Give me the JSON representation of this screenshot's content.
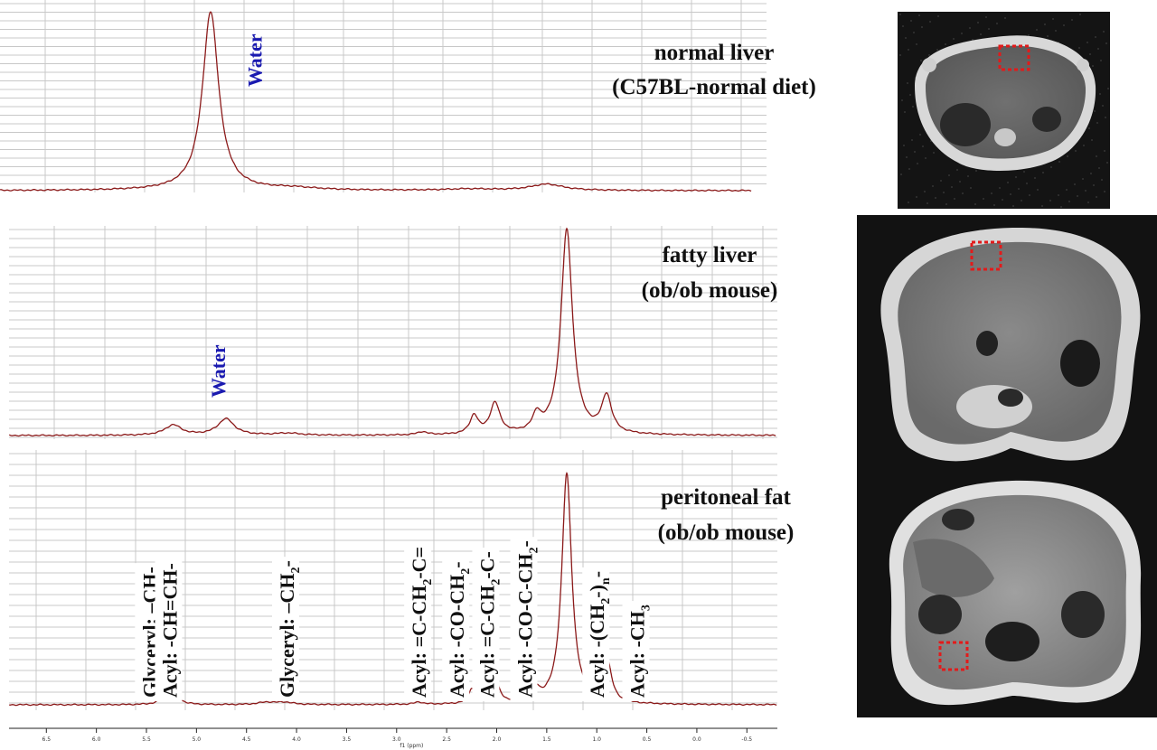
{
  "colors": {
    "trace": "#8b1a1a",
    "water_label": "#1a1ab0",
    "roi_box": "#e31a1a",
    "grid": "#c8c8c8"
  },
  "chart_data": [
    {
      "type": "line",
      "title_lines": [
        "normal liver",
        "(C57BL-normal diet)"
      ],
      "xrange": [
        8.5,
        -0.8
      ],
      "x_reversed": true,
      "grid": true,
      "peaks": [
        {
          "ppm": 4.75,
          "height": 1.0,
          "width": 0.1
        },
        {
          "ppm": 3.9,
          "height": 0.012,
          "width": 0.3
        },
        {
          "ppm": 2.1,
          "height": 0.008,
          "width": 0.3
        },
        {
          "ppm": 1.3,
          "height": 0.035,
          "width": 0.2
        }
      ],
      "annotations": [
        {
          "text": "Water",
          "ppm": 4.3,
          "color": "water"
        }
      ]
    },
    {
      "type": "line",
      "title_lines": [
        "fatty liver",
        "(ob/ob mouse)"
      ],
      "xrange": [
        8.5,
        -0.8
      ],
      "x_reversed": true,
      "grid": true,
      "peaks": [
        {
          "ppm": 5.25,
          "height": 0.05,
          "width": 0.1
        },
        {
          "ppm": 4.72,
          "height": 0.08,
          "width": 0.1
        },
        {
          "ppm": 4.1,
          "height": 0.01,
          "width": 0.15
        },
        {
          "ppm": 2.75,
          "height": 0.015,
          "width": 0.06
        },
        {
          "ppm": 2.23,
          "height": 0.09,
          "width": 0.05
        },
        {
          "ppm": 2.02,
          "height": 0.15,
          "width": 0.06
        },
        {
          "ppm": 1.6,
          "height": 0.08,
          "width": 0.05
        },
        {
          "ppm": 1.3,
          "height": 1.0,
          "width": 0.07
        },
        {
          "ppm": 0.9,
          "height": 0.18,
          "width": 0.06
        }
      ],
      "annotations": [
        {
          "text": "Water",
          "ppm": 4.8,
          "color": "water"
        }
      ]
    },
    {
      "type": "line",
      "title_lines": [
        "peritoneal fat",
        "(ob/ob mouse)"
      ],
      "xrange": [
        8.5,
        -0.8
      ],
      "x_reversed": true,
      "grid": true,
      "x_ticks": [
        "6.5",
        "6.0",
        "5.5",
        "5.0",
        "4.5",
        "4.0",
        "3.5",
        "3.0",
        "2.5",
        "2.0",
        "1.5",
        "1.0",
        "0.5",
        "0.0",
        "-0.5"
      ],
      "x_tick_values": [
        6.5,
        6.0,
        5.5,
        5.0,
        4.5,
        4.0,
        3.5,
        3.0,
        2.5,
        2.0,
        1.5,
        1.0,
        0.5,
        0.0,
        -0.5
      ],
      "xlabel": "f1 (ppm)",
      "peaks": [
        {
          "ppm": 5.3,
          "height": 0.05,
          "width": 0.05
        },
        {
          "ppm": 5.22,
          "height": 0.05,
          "width": 0.05
        },
        {
          "ppm": 4.3,
          "height": 0.01,
          "width": 0.1
        },
        {
          "ppm": 4.12,
          "height": 0.01,
          "width": 0.1
        },
        {
          "ppm": 2.78,
          "height": 0.01,
          "width": 0.05
        },
        {
          "ppm": 2.25,
          "height": 0.06,
          "width": 0.04
        },
        {
          "ppm": 2.03,
          "height": 0.14,
          "width": 0.05
        },
        {
          "ppm": 1.6,
          "height": 0.05,
          "width": 0.04
        },
        {
          "ppm": 1.3,
          "height": 1.0,
          "width": 0.06
        },
        {
          "ppm": 0.89,
          "height": 0.17,
          "width": 0.05
        }
      ],
      "annotations": [
        {
          "parts": [
            [
              "Glyceryl: –CH-"
            ]
          ],
          "ppm": 5.47
        },
        {
          "parts": [
            [
              "Acyl: -CH=CH-"
            ]
          ],
          "ppm": 5.27
        },
        {
          "parts": [
            [
              "Glyceryl: –CH"
            ],
            [
              "2",
              "sub"
            ],
            [
              "-"
            ]
          ],
          "ppm": 4.1
        },
        {
          "parts": [
            [
              "Acyl: =C-CH"
            ],
            [
              "2",
              "sub"
            ],
            [
              "-C="
            ]
          ],
          "ppm": 2.78
        },
        {
          "parts": [
            [
              "Acyl: -CO-CH"
            ],
            [
              "2",
              "sub"
            ],
            [
              "-"
            ]
          ],
          "ppm": 2.4
        },
        {
          "parts": [
            [
              "Acyl: =C-CH"
            ],
            [
              "2",
              "sub"
            ],
            [
              "-C-"
            ]
          ],
          "ppm": 2.1
        },
        {
          "parts": [
            [
              "Acyl: -CO-C-CH"
            ],
            [
              "2",
              "sub"
            ],
            [
              "-"
            ]
          ],
          "ppm": 1.72
        },
        {
          "parts": [
            [
              "Acyl: -(CH"
            ],
            [
              "2",
              "sub"
            ],
            [
              "-)"
            ],
            [
              "n",
              "sub"
            ],
            [
              "-"
            ]
          ],
          "ppm": 1.0
        },
        {
          "parts": [
            [
              "Acyl: -CH"
            ],
            [
              "3",
              "sub"
            ]
          ],
          "ppm": 0.6
        }
      ]
    }
  ],
  "mri_images": [
    {
      "name": "normal-liver-mri",
      "roi": "top"
    },
    {
      "name": "fatty-liver-mri",
      "roi": "top"
    },
    {
      "name": "peritoneal-fat-mri",
      "roi": "bottom-left"
    }
  ]
}
